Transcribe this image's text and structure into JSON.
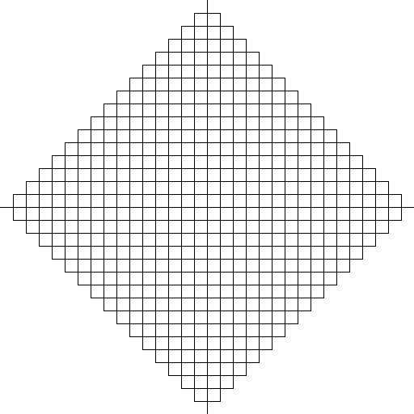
{
  "figure": {
    "shape": "aztec-diamond",
    "order": 15,
    "axes": {
      "x_axis": true,
      "y_axis": true
    }
  },
  "colors": {
    "background": "#ffffff",
    "stroke": "#000000"
  }
}
